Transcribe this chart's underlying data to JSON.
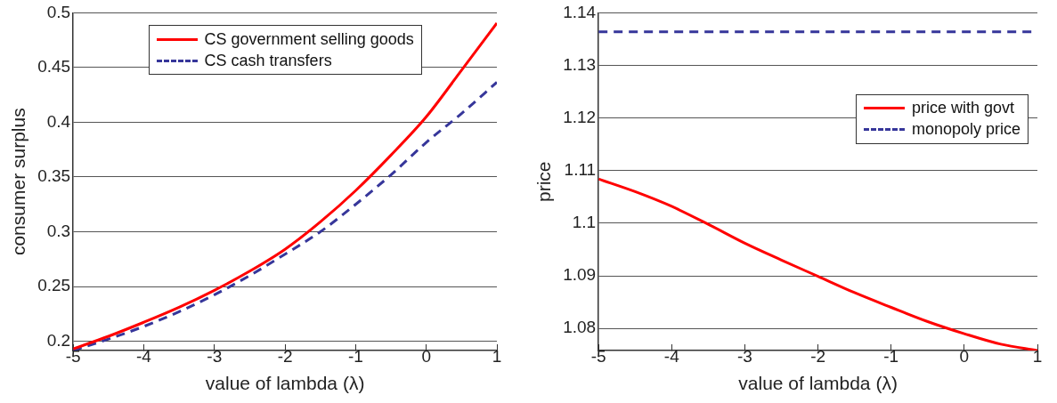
{
  "chart_data": [
    {
      "type": "line",
      "xlabel": "value of lambda (λ)",
      "ylabel": "consumer surplus",
      "x": [
        -5,
        -4.5,
        -4,
        -3.5,
        -3,
        -2.5,
        -2,
        -1.5,
        -1,
        -0.5,
        0,
        0.5,
        1
      ],
      "xlim": [
        -5,
        1
      ],
      "xticks": [
        -5,
        -4,
        -3,
        -2,
        -1,
        0,
        1
      ],
      "ylim": [
        0.1915,
        0.5
      ],
      "yticks": [
        0.2,
        0.25,
        0.3,
        0.35,
        0.4,
        0.45,
        0.5
      ],
      "grid": "y",
      "legend": "top",
      "marker": "none",
      "series": [
        {
          "name": "CS government selling goods",
          "color": "#ff0000",
          "line_style": "solid",
          "values": [
            0.193,
            0.2045,
            0.2173,
            0.231,
            0.2465,
            0.264,
            0.284,
            0.309,
            0.3376,
            0.37,
            0.405,
            0.4476,
            0.4906
          ]
        },
        {
          "name": "CS cash transfers",
          "color": "#36369a",
          "line_style": "dashed",
          "values": [
            0.1915,
            0.202,
            0.2135,
            0.227,
            0.2424,
            0.26,
            0.2795,
            0.3,
            0.325,
            0.352,
            0.3816,
            0.408,
            0.4366
          ]
        }
      ]
    },
    {
      "type": "line",
      "xlabel": "value of lambda (λ)",
      "ylabel": "price",
      "x": [
        -5,
        -4.5,
        -4,
        -3.5,
        -3,
        -2.5,
        -2,
        -1.5,
        -1,
        -0.5,
        0,
        0.5,
        1
      ],
      "xlim": [
        -5,
        1
      ],
      "xticks": [
        -5,
        -4,
        -3,
        -2,
        -1,
        0,
        1
      ],
      "ylim": [
        1.0758,
        1.14
      ],
      "yticks": [
        1.08,
        1.09,
        1.1,
        1.11,
        1.12,
        1.13,
        1.14
      ],
      "grid": "y",
      "legend": "right",
      "marker": "none",
      "series": [
        {
          "name": "price with govt",
          "color": "#ff0000",
          "line_style": "solid",
          "values": [
            1.1084,
            1.106,
            1.1032,
            1.0998,
            1.0962,
            1.093,
            1.0899,
            1.0868,
            1.084,
            1.0813,
            1.079,
            1.077,
            1.0758
          ]
        },
        {
          "name": "monopoly price",
          "color": "#36369a",
          "line_style": "dashed",
          "values": [
            1.1364,
            1.1364,
            1.1364,
            1.1364,
            1.1364,
            1.1364,
            1.1364,
            1.1364,
            1.1364,
            1.1364,
            1.1364,
            1.1364,
            1.1364
          ]
        }
      ]
    }
  ]
}
